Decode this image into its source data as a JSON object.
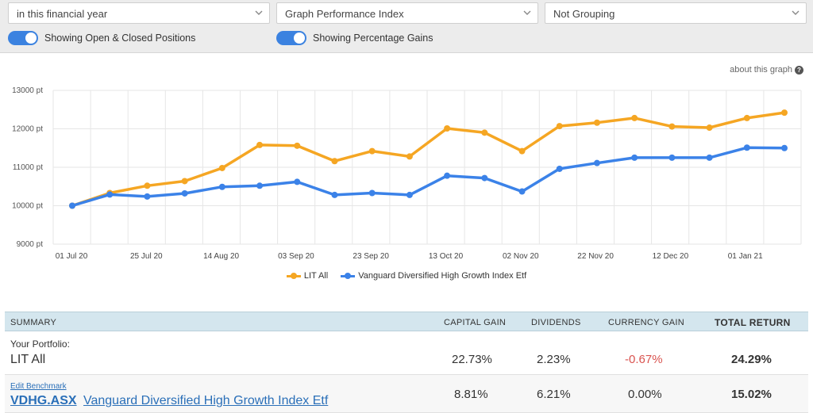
{
  "controls": {
    "period_select": "in this financial year",
    "graph_select": "Graph Performance Index",
    "grouping_select": "Not Grouping",
    "toggle_positions": "Showing Open & Closed Positions",
    "toggle_gains": "Showing Percentage Gains"
  },
  "about_link": "about this graph",
  "colors": {
    "series1": "#f5a623",
    "series2": "#3b82e8",
    "header_bg": "#d4e6ee",
    "negative": "#d9534f"
  },
  "chart_data": {
    "type": "line",
    "y_unit_suffix": " pt",
    "ylim": [
      9000,
      13000
    ],
    "y_ticks": [
      9000,
      10000,
      11000,
      12000,
      13000
    ],
    "y_tick_labels": [
      "9000 pt",
      "10000 pt",
      "11000 pt",
      "12000 pt",
      "13000 pt"
    ],
    "x_tick_labels": [
      "01 Jul 20",
      "25 Jul 20",
      "14 Aug 20",
      "03 Sep 20",
      "23 Sep 20",
      "13 Oct 20",
      "02 Nov 20",
      "22 Nov 20",
      "12 Dec 20",
      "01 Jan 21"
    ],
    "x": [
      "2020-07-01",
      "2020-07-11",
      "2020-07-21",
      "2020-07-31",
      "2020-08-10",
      "2020-08-20",
      "2020-08-30",
      "2020-09-09",
      "2020-09-19",
      "2020-09-29",
      "2020-10-09",
      "2020-10-19",
      "2020-10-29",
      "2020-11-08",
      "2020-11-18",
      "2020-11-28",
      "2020-12-08",
      "2020-12-18",
      "2020-12-28",
      "2021-01-07"
    ],
    "grid": true,
    "legend_position": "bottom-center",
    "series": [
      {
        "name": "LIT All",
        "color": "#f5a623",
        "values": [
          10000,
          10330,
          10520,
          10640,
          10980,
          11580,
          11560,
          11160,
          11420,
          11280,
          12010,
          11900,
          11420,
          12070,
          12160,
          12280,
          12060,
          12030,
          12280,
          12420
        ]
      },
      {
        "name": "Vanguard Diversified High Growth Index Etf",
        "color": "#3b82e8",
        "values": [
          10000,
          10290,
          10240,
          10320,
          10490,
          10520,
          10620,
          10280,
          10330,
          10280,
          10780,
          10720,
          10370,
          10960,
          11110,
          11250,
          11250,
          11250,
          11510,
          11500
        ]
      }
    ]
  },
  "summary": {
    "headers": {
      "summary": "SUMMARY",
      "capital_gain": "CAPITAL GAIN",
      "dividends": "DIVIDENDS",
      "currency_gain": "CURRENCY GAIN",
      "total_return": "TOTAL RETURN"
    },
    "portfolio": {
      "label": "Your Portfolio:",
      "name": "LIT All",
      "capital_gain": "22.73%",
      "dividends": "2.23%",
      "currency_gain": "-0.67%",
      "total_return": "24.29%"
    },
    "benchmark": {
      "edit_label": "Edit Benchmark",
      "ticker": "VDHG.ASX",
      "name": "Vanguard Diversified High Growth Index Etf",
      "capital_gain": "8.81%",
      "dividends": "6.21%",
      "currency_gain": "0.00%",
      "total_return": "15.02%"
    }
  }
}
